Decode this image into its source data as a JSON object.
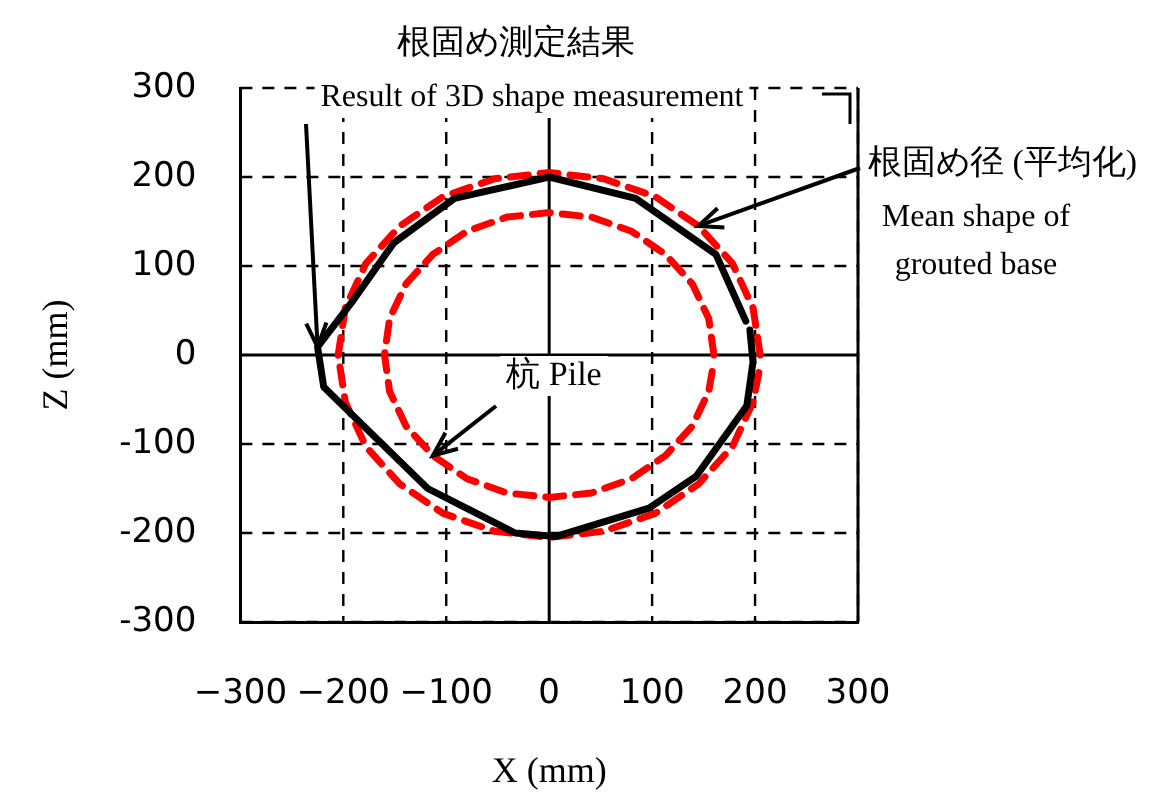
{
  "chart_data": {
    "type": "line",
    "xlabel": "X (mm)",
    "ylabel": "Z (mm)",
    "annotations": [
      "根固め測定結果",
      {
        "text": "Result of 3D shape measurement",
        "x": -225,
        "y": 9
      },
      {
        "text": "根固め径 (平均化)",
        "x": 145,
        "y": 145
      },
      "Mean shape of grouted base",
      {
        "text": "杭 Pile",
        "x": -113,
        "y": -113
      }
    ],
    "series": [
      {
        "color": "#000000",
        "x": [
          195,
          198,
          192,
          143,
          97,
          6,
          -33,
          -118,
          -219,
          -225,
          -190,
          -151,
          -92,
          0,
          84,
          162,
          191
        ],
        "values": [
          28,
          -8,
          -57,
          -136,
          -172,
          -204,
          -200,
          -150,
          -36,
          9,
          62,
          126,
          176,
          200,
          176,
          113,
          38
        ],
        "line_style": "solid"
      },
      {
        "color": "#ff0000",
        "x": [
          205,
          198,
          178,
          145,
          103,
          53,
          0,
          -53,
          -103,
          -145,
          -178,
          -198,
          -205,
          -198,
          -178,
          -145,
          -103,
          -53,
          0,
          53,
          103,
          145,
          178,
          198,
          204
        ],
        "values": [
          0,
          53,
          103,
          145,
          178,
          198,
          205,
          198,
          178,
          145,
          103,
          53,
          0,
          -53,
          -103,
          -145,
          -178,
          -198,
          -205,
          -198,
          -178,
          -145,
          -103,
          -53,
          -18
        ],
        "line_style": "dashed"
      },
      {
        "color": "#ff0000",
        "x": [
          160,
          155,
          139,
          113,
          80,
          41,
          0,
          -41,
          -80,
          -113,
          -139,
          -155,
          -160,
          -155,
          -139,
          -113,
          -80,
          -41,
          0,
          41,
          80,
          113,
          139,
          155,
          159
        ],
        "values": [
          0,
          41,
          80,
          113,
          139,
          155,
          160,
          155,
          139,
          113,
          80,
          41,
          0,
          -41,
          -80,
          -113,
          -139,
          -155,
          -160,
          -155,
          -139,
          -113,
          -80,
          -41,
          -14
        ],
        "line_style": "dashed"
      }
    ],
    "xlim": [
      -300,
      300
    ],
    "xticks": [
      {
        "value": -300,
        "label": "−300"
      },
      {
        "value": -200,
        "label": "−200"
      },
      {
        "value": -100,
        "label": "−100"
      },
      0,
      100,
      200,
      300
    ],
    "ylim": [
      -300,
      300
    ],
    "yticks": [
      -300,
      -200,
      -100,
      0,
      100,
      200,
      300
    ],
    "grid": true,
    "legend": false,
    "marker": "none"
  }
}
